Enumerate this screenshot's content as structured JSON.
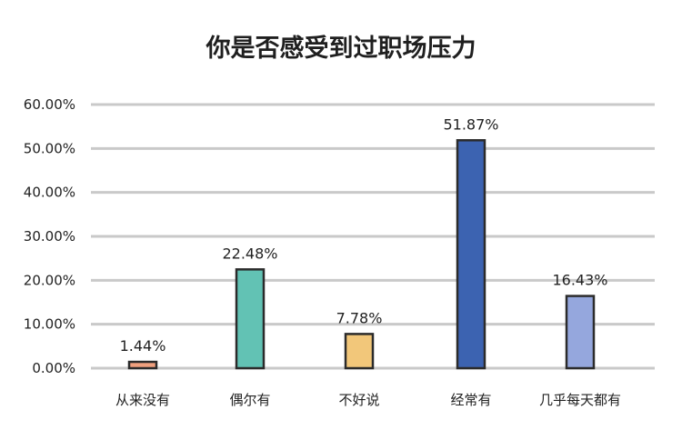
{
  "chart_data": {
    "type": "bar",
    "title": "你是否感受到过职场压力",
    "categories": [
      "从来没有",
      "偶尔有",
      "不好说",
      "经常有",
      "几乎每天都有"
    ],
    "values": [
      1.44,
      22.48,
      7.78,
      51.87,
      16.43
    ],
    "data_labels": [
      "1.44%",
      "22.48%",
      "7.78%",
      "51.87%",
      "16.43%"
    ],
    "y_ticks": [
      "0.00%",
      "10.00%",
      "20.00%",
      "30.00%",
      "40.00%",
      "50.00%",
      "60.00%"
    ],
    "ylim": [
      0,
      60
    ],
    "grid": true,
    "colors": [
      "#f0a07e",
      "#62c2b4",
      "#f2c77a",
      "#3c63b1",
      "#95a7dd"
    ]
  }
}
